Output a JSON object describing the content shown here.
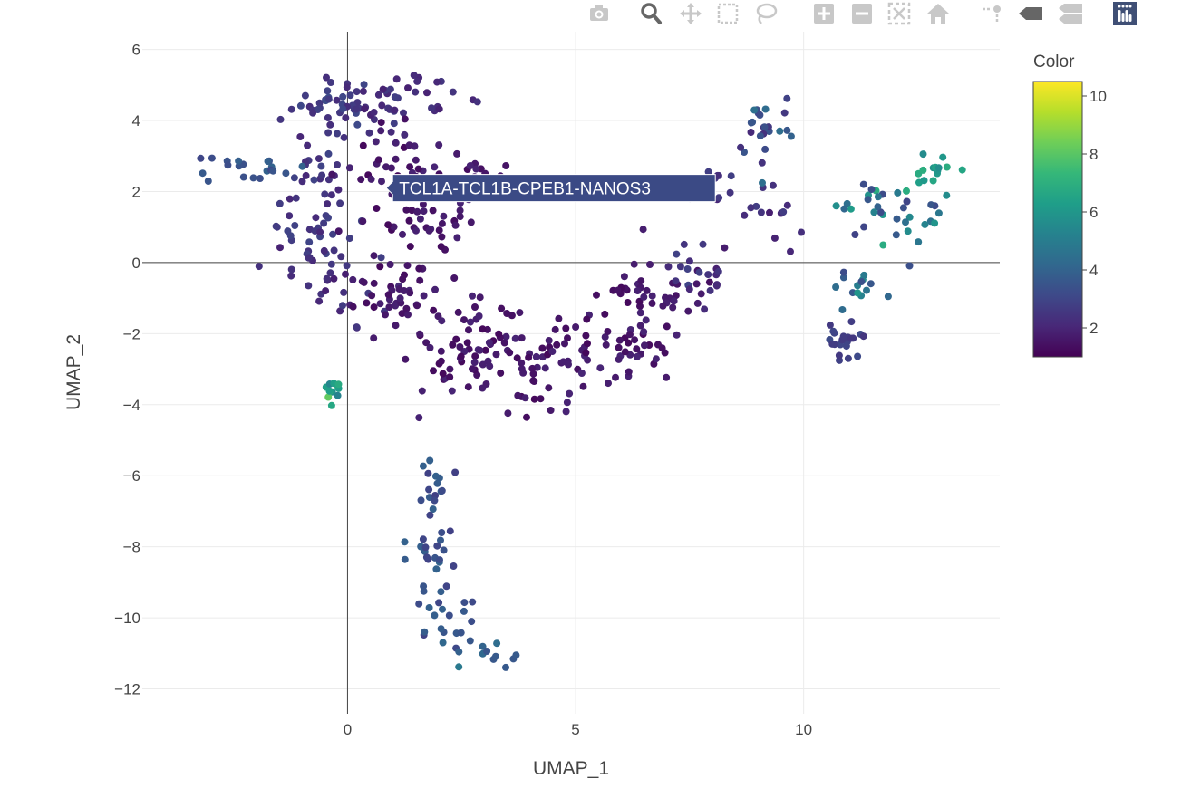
{
  "modebar": {
    "buttons": [
      {
        "name": "camera-icon",
        "title": "Download plot as a png"
      },
      {
        "name": "zoom-icon",
        "title": "Zoom"
      },
      {
        "name": "pan-icon",
        "title": "Pan"
      },
      {
        "name": "box-select-icon",
        "title": "Box Select"
      },
      {
        "name": "lasso-select-icon",
        "title": "Lasso Select"
      },
      {
        "name": "zoom-in-icon",
        "title": "Zoom in"
      },
      {
        "name": "zoom-out-icon",
        "title": "Zoom out"
      },
      {
        "name": "autoscale-icon",
        "title": "Autoscale"
      },
      {
        "name": "home-icon",
        "title": "Reset axes"
      },
      {
        "name": "spike-lines-icon",
        "title": "Toggle Spike Lines"
      },
      {
        "name": "hover-closest-icon",
        "title": "Show closest data on hover"
      },
      {
        "name": "hover-compare-icon",
        "title": "Compare data on hover"
      },
      {
        "name": "plotly-logo-icon",
        "title": "Produced with Plotly"
      }
    ],
    "colors": {
      "inactive": "#c8c8c8",
      "active": "#666666",
      "logo": "#3f4f75"
    }
  },
  "chart_data": {
    "type": "scatter",
    "title": "",
    "xlabel": "UMAP_1",
    "ylabel": "UMAP_2",
    "xlim": [
      -4.5,
      14.3
    ],
    "ylim": [
      -12.7,
      6.5
    ],
    "xticks": [
      0,
      5,
      10
    ],
    "yticks": [
      -12,
      -10,
      -8,
      -6,
      -4,
      -2,
      0,
      2,
      4,
      6
    ],
    "tick_labels_x": [
      "0",
      "5",
      "10"
    ],
    "tick_labels_y": [
      "−12",
      "−10",
      "−8",
      "−6",
      "−4",
      "−2",
      "0",
      "2",
      "4",
      "6"
    ],
    "grid": true,
    "colorbar": {
      "title": "Color",
      "range": [
        1,
        10.5
      ],
      "ticks": [
        2,
        4,
        6,
        8,
        10
      ],
      "tick_labels": [
        "2",
        "4",
        "6",
        "8",
        "10"
      ],
      "colorscale": [
        "#440154",
        "#482878",
        "#3e4989",
        "#31688e",
        "#26828e",
        "#1f9e89",
        "#35b779",
        "#6ece58",
        "#b5de2b",
        "#fde725"
      ]
    },
    "tooltip": {
      "text": "TCL1A-TCL1B-CPEB1-NANOS3",
      "x": 0.85,
      "y": 2.1,
      "color": "#3b4a85"
    },
    "clusters": [
      {
        "cx": -0.3,
        "cy": 4.5,
        "sx": 0.45,
        "sy": 0.35,
        "n": 35,
        "c": [
          2.2,
          3.2
        ]
      },
      {
        "cx": 1.0,
        "cy": 4.5,
        "sx": 0.7,
        "sy": 0.4,
        "n": 40,
        "c": [
          1.8,
          2.8
        ]
      },
      {
        "cx": -0.7,
        "cy": 2.5,
        "sx": 0.5,
        "sy": 0.6,
        "n": 30,
        "c": [
          2.0,
          3.0
        ]
      },
      {
        "cx": -0.7,
        "cy": 0.8,
        "sx": 0.5,
        "sy": 0.6,
        "n": 30,
        "c": [
          2.0,
          3.0
        ]
      },
      {
        "cx": -0.2,
        "cy": -0.8,
        "sx": 0.5,
        "sy": 0.6,
        "n": 25,
        "c": [
          1.8,
          2.8
        ]
      },
      {
        "cx": 1.3,
        "cy": 2.8,
        "sx": 0.7,
        "sy": 0.55,
        "n": 40,
        "c": [
          1.2,
          2.0
        ]
      },
      {
        "cx": 2.5,
        "cy": 2.3,
        "sx": 0.55,
        "sy": 0.5,
        "n": 25,
        "c": [
          1.2,
          2.0
        ]
      },
      {
        "cx": 1.2,
        "cy": 0.9,
        "sx": 0.65,
        "sy": 0.6,
        "n": 35,
        "c": [
          1.2,
          2.0
        ]
      },
      {
        "cx": 1.2,
        "cy": -1.2,
        "sx": 0.7,
        "sy": 0.6,
        "n": 40,
        "c": [
          1.2,
          2.0
        ]
      },
      {
        "cx": 2.2,
        "cy": -2.8,
        "sx": 0.6,
        "sy": 0.55,
        "n": 30,
        "c": [
          1.2,
          2.0
        ]
      },
      {
        "cx": 3.0,
        "cy": -2.0,
        "sx": 0.6,
        "sy": 0.5,
        "n": 35,
        "c": [
          1.2,
          2.0
        ]
      },
      {
        "cx": 4.2,
        "cy": -3.2,
        "sx": 0.6,
        "sy": 0.55,
        "n": 35,
        "c": [
          1.2,
          2.0
        ]
      },
      {
        "cx": 5.2,
        "cy": -2.3,
        "sx": 0.6,
        "sy": 0.6,
        "n": 30,
        "c": [
          1.2,
          2.0
        ]
      },
      {
        "cx": 6.3,
        "cy": -0.8,
        "sx": 0.7,
        "sy": 0.55,
        "n": 35,
        "c": [
          1.2,
          2.0
        ]
      },
      {
        "cx": 6.3,
        "cy": -2.4,
        "sx": 0.6,
        "sy": 0.4,
        "n": 25,
        "c": [
          1.2,
          2.0
        ]
      },
      {
        "cx": 7.6,
        "cy": -0.6,
        "sx": 0.4,
        "sy": 0.65,
        "n": 25,
        "c": [
          1.5,
          3.0
        ]
      },
      {
        "cx": 8.0,
        "cy": 2.2,
        "sx": 0.4,
        "sy": 0.3,
        "n": 15,
        "c": [
          1.8,
          2.8
        ]
      },
      {
        "cx": 9.1,
        "cy": 3.7,
        "sx": 0.3,
        "sy": 0.5,
        "n": 25,
        "c": [
          2.0,
          4.5
        ]
      },
      {
        "cx": 9.2,
        "cy": 1.8,
        "sx": 0.35,
        "sy": 0.6,
        "n": 12,
        "c": [
          1.8,
          2.8
        ]
      },
      {
        "cx": -2.6,
        "cy": 2.8,
        "sx": 0.4,
        "sy": 0.15,
        "n": 12,
        "c": [
          3.0,
          4.0
        ]
      },
      {
        "cx": -1.5,
        "cy": 2.6,
        "sx": 0.4,
        "sy": 0.2,
        "n": 8,
        "c": [
          3.0,
          4.0
        ]
      },
      {
        "cx": -0.3,
        "cy": -3.6,
        "sx": 0.15,
        "sy": 0.15,
        "n": 12,
        "c": [
          5.0,
          9.0
        ]
      },
      {
        "cx": 1.9,
        "cy": -6.6,
        "sx": 0.3,
        "sy": 0.5,
        "n": 18,
        "c": [
          2.8,
          4.0
        ]
      },
      {
        "cx": 1.8,
        "cy": -8.2,
        "sx": 0.3,
        "sy": 0.5,
        "n": 18,
        "c": [
          2.8,
          4.0
        ]
      },
      {
        "cx": 2.1,
        "cy": -9.9,
        "sx": 0.35,
        "sy": 0.4,
        "n": 18,
        "c": [
          2.8,
          4.0
        ]
      },
      {
        "cx": 3.1,
        "cy": -11.0,
        "sx": 0.45,
        "sy": 0.25,
        "n": 14,
        "c": [
          3.0,
          5.0
        ]
      },
      {
        "cx": 11.4,
        "cy": 1.5,
        "sx": 0.4,
        "sy": 0.5,
        "n": 18,
        "c": [
          2.8,
          7.0
        ]
      },
      {
        "cx": 12.4,
        "cy": 1.2,
        "sx": 0.5,
        "sy": 0.4,
        "n": 18,
        "c": [
          2.8,
          6.0
        ]
      },
      {
        "cx": 12.8,
        "cy": 2.6,
        "sx": 0.3,
        "sy": 0.2,
        "n": 14,
        "c": [
          5.5,
          7.0
        ]
      },
      {
        "cx": 11.4,
        "cy": -0.6,
        "sx": 0.5,
        "sy": 0.3,
        "n": 14,
        "c": [
          2.8,
          6.0
        ]
      },
      {
        "cx": 10.9,
        "cy": -2.2,
        "sx": 0.2,
        "sy": 0.25,
        "n": 22,
        "c": [
          2.5,
          3.2
        ]
      }
    ]
  }
}
